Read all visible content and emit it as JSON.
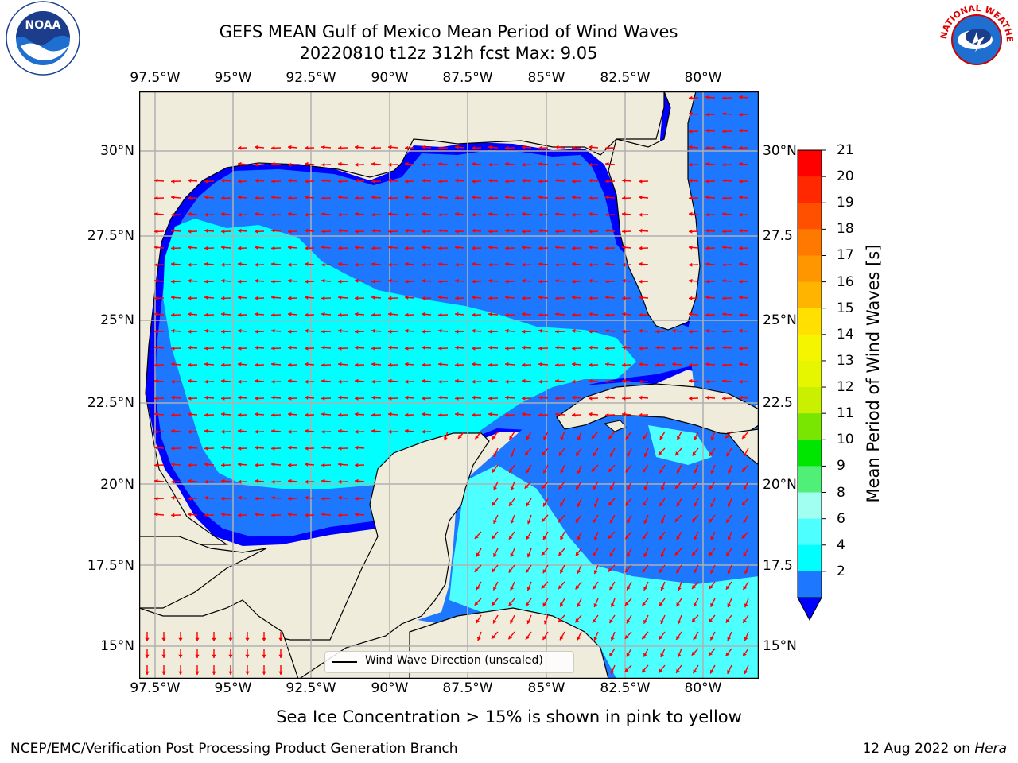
{
  "header": {
    "title_line1": "GEFS MEAN Gulf of Mexico Mean Period of Wind Waves",
    "title_line2": "20220810 t12z 312h fcst   Max: 9.05"
  },
  "map": {
    "lon_labels": [
      "97.5°W",
      "95°W",
      "92.5°W",
      "90°W",
      "87.5°W",
      "85°W",
      "82.5°W",
      "80°W"
    ],
    "lat_labels_left": [
      "30°N",
      "27.5°N",
      "25°N",
      "22.5°N",
      "20°N",
      "17.5°N",
      "15°N"
    ],
    "lat_labels_right": [
      "30°N",
      "27.5",
      "25°N",
      "22.5",
      "20°N",
      "17.5",
      "15°N"
    ],
    "legend_label": "Wind Wave Direction (unscaled)",
    "ocean_colors": {
      "dark_blue": "#0000ff",
      "mid_blue": "#1e78ff",
      "cyan": "#00ffff",
      "light_cyan": "#4dffff",
      "land": "#efecdc"
    },
    "arrow_color": "#ff0000"
  },
  "colorbar": {
    "title": "Mean Period of Wind Waves [s]",
    "ticks": [
      "21",
      "20",
      "19",
      "18",
      "17",
      "16",
      "15",
      "14",
      "13",
      "12",
      "11",
      "10",
      "9",
      "8",
      "6",
      "4",
      "2"
    ],
    "colors": [
      "#ff0000",
      "#ff2800",
      "#ff5000",
      "#ff7800",
      "#ff9600",
      "#ffb400",
      "#ffe000",
      "#f5f500",
      "#e6f500",
      "#c8f000",
      "#78e600",
      "#00e600",
      "#50f078",
      "#a0fff0",
      "#4dffff",
      "#00ffff",
      "#1e78ff",
      "#0000ff"
    ]
  },
  "footer": {
    "sea_ice_note": "Sea Ice Concentration > 15% is shown in pink to yellow",
    "org": "NCEP/EMC/Verification Post Processing Product Generation Branch",
    "date": "12 Aug 2022 on",
    "host": "Hera"
  },
  "logos": {
    "left": "noaa-logo",
    "right": "nws-logo",
    "nws_text": "NATIONAL WEATHER SERVICE"
  }
}
